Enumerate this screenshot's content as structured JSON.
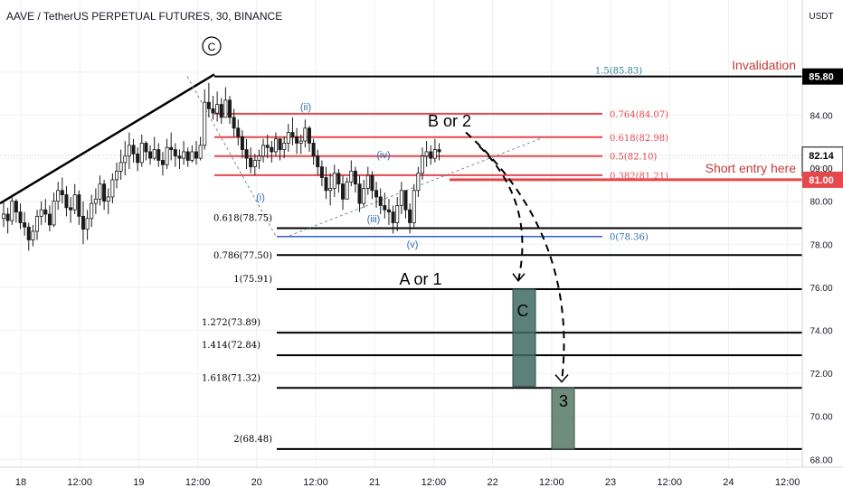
{
  "header": {
    "title": "AAVE / TetherUS PERPETUAL FUTURES, 30, BINANCE",
    "currency": "USDT"
  },
  "colors": {
    "background": "#ffffff",
    "grid": "#eef0f3",
    "axis_text": "#131722",
    "red_line": "#e5484d",
    "black_line": "#000000",
    "blue_line": "#2f5fd0",
    "candle": "#1b1b1b",
    "box_fill": "#3f6b66",
    "annotation_red": "#c43b3b",
    "annotation_blue": "#2e6fb3"
  },
  "chart_data": {
    "type": "candlestick",
    "symbol": "AAVE / TetherUS PERPETUAL FUTURES",
    "interval": "30",
    "exchange": "BINANCE",
    "ylim": [
      67.8,
      88.0
    ],
    "y_ticks": [
      "86.00",
      "84.00",
      "82.00",
      "80.00",
      "78.00",
      "76.00",
      "74.00",
      "72.00",
      "70.00",
      "68.00"
    ],
    "x_tick_labels": [
      "18",
      "12:00",
      "19",
      "12:00",
      "20",
      "12:00",
      "21",
      "12:00",
      "22",
      "12:00",
      "23",
      "12:00",
      "24",
      "12:00"
    ],
    "price_badges": [
      {
        "label": "85.80",
        "price": 85.8,
        "style": "black"
      },
      {
        "label": "82.14",
        "price": 82.14,
        "label2": "09:00",
        "style": "white"
      },
      {
        "label": "81.00",
        "price": 81.0,
        "style": "red"
      }
    ],
    "candles_hlc": [
      [
        80.0,
        78.8,
        79.4
      ],
      [
        79.7,
        78.5,
        79.1
      ],
      [
        80.3,
        78.9,
        80.0
      ],
      [
        80.1,
        79.0,
        79.5
      ],
      [
        79.9,
        78.7,
        79.0
      ],
      [
        79.5,
        78.4,
        78.8
      ],
      [
        79.0,
        77.7,
        78.2
      ],
      [
        78.9,
        77.9,
        78.6
      ],
      [
        79.6,
        78.2,
        79.3
      ],
      [
        80.0,
        78.9,
        79.6
      ],
      [
        80.1,
        79.0,
        79.4
      ],
      [
        79.8,
        78.6,
        78.9
      ],
      [
        80.4,
        78.8,
        80.0
      ],
      [
        80.9,
        79.6,
        80.5
      ],
      [
        81.1,
        79.9,
        80.3
      ],
      [
        80.7,
        79.3,
        79.7
      ],
      [
        80.2,
        79.0,
        79.6
      ],
      [
        80.8,
        79.4,
        80.3
      ],
      [
        80.5,
        78.9,
        79.3
      ],
      [
        80.0,
        78.0,
        78.7
      ],
      [
        79.6,
        78.2,
        79.2
      ],
      [
        80.3,
        78.8,
        79.9
      ],
      [
        80.6,
        79.4,
        80.1
      ],
      [
        81.2,
        79.8,
        80.8
      ],
      [
        81.0,
        79.6,
        80.0
      ],
      [
        80.6,
        79.4,
        80.2
      ],
      [
        81.3,
        79.9,
        81.0
      ],
      [
        81.8,
        80.6,
        81.4
      ],
      [
        82.4,
        81.0,
        81.8
      ],
      [
        82.8,
        81.2,
        82.1
      ],
      [
        83.2,
        81.5,
        82.6
      ],
      [
        82.9,
        81.8,
        82.2
      ],
      [
        82.5,
        81.4,
        81.8
      ],
      [
        83.1,
        81.6,
        82.7
      ],
      [
        82.8,
        81.9,
        82.3
      ],
      [
        82.6,
        81.7,
        82.0
      ],
      [
        83.0,
        81.9,
        82.4
      ],
      [
        82.7,
        81.6,
        81.9
      ],
      [
        82.3,
        81.2,
        81.7
      ],
      [
        82.9,
        81.5,
        82.5
      ],
      [
        83.2,
        81.9,
        82.4
      ],
      [
        82.7,
        81.6,
        82.1
      ],
      [
        82.4,
        81.5,
        82.0
      ],
      [
        82.8,
        81.7,
        82.3
      ],
      [
        82.5,
        81.6,
        81.9
      ],
      [
        82.6,
        81.8,
        82.3
      ],
      [
        82.8,
        81.7,
        82.0
      ],
      [
        83.0,
        81.9,
        82.6
      ],
      [
        85.2,
        82.4,
        84.6
      ],
      [
        85.5,
        83.9,
        84.3
      ],
      [
        84.9,
        83.8,
        84.1
      ],
      [
        85.1,
        83.7,
        84.5
      ],
      [
        84.8,
        83.6,
        83.9
      ],
      [
        85.3,
        83.9,
        84.7
      ],
      [
        84.9,
        83.6,
        83.9
      ],
      [
        84.3,
        83.0,
        83.4
      ],
      [
        83.8,
        82.6,
        83.0
      ],
      [
        83.3,
        82.0,
        82.4
      ],
      [
        82.9,
        81.5,
        82.0
      ],
      [
        82.5,
        81.3,
        81.6
      ],
      [
        82.2,
        81.2,
        81.9
      ],
      [
        82.4,
        81.5,
        82.1
      ],
      [
        82.9,
        81.8,
        82.6
      ],
      [
        83.1,
        82.0,
        82.5
      ],
      [
        82.8,
        81.8,
        82.3
      ],
      [
        83.2,
        82.1,
        82.9
      ],
      [
        82.9,
        81.9,
        82.4
      ],
      [
        83.0,
        82.0,
        82.7
      ],
      [
        83.6,
        82.3,
        83.2
      ],
      [
        83.9,
        82.6,
        83.0
      ],
      [
        83.4,
        82.2,
        82.7
      ],
      [
        83.1,
        82.2,
        82.8
      ],
      [
        83.8,
        82.5,
        83.4
      ],
      [
        83.5,
        82.3,
        82.7
      ],
      [
        82.9,
        81.7,
        82.1
      ],
      [
        82.4,
        81.2,
        81.6
      ],
      [
        81.9,
        80.7,
        81.1
      ],
      [
        81.6,
        80.1,
        80.5
      ],
      [
        81.3,
        79.8,
        80.6
      ],
      [
        81.7,
        80.2,
        81.3
      ],
      [
        81.5,
        80.4,
        80.8
      ],
      [
        81.2,
        79.6,
        80.1
      ],
      [
        81.1,
        80.2,
        80.9
      ],
      [
        81.9,
        80.7,
        81.4
      ],
      [
        81.6,
        80.4,
        80.8
      ],
      [
        81.2,
        79.5,
        79.9
      ],
      [
        81.0,
        79.7,
        80.6
      ],
      [
        81.6,
        80.3,
        81.2
      ],
      [
        81.4,
        80.1,
        80.5
      ],
      [
        80.9,
        79.7,
        80.2
      ],
      [
        80.6,
        79.4,
        79.8
      ],
      [
        80.4,
        79.2,
        79.6
      ],
      [
        80.1,
        78.9,
        79.5
      ],
      [
        79.8,
        78.5,
        79.0
      ],
      [
        80.2,
        78.6,
        79.8
      ],
      [
        80.9,
        79.4,
        80.5
      ],
      [
        80.5,
        79.2,
        79.6
      ],
      [
        79.9,
        78.5,
        79.0
      ],
      [
        80.8,
        78.8,
        80.5
      ],
      [
        81.6,
        80.2,
        81.3
      ],
      [
        82.5,
        81.0,
        82.1
      ],
      [
        82.8,
        81.6,
        82.3
      ],
      [
        82.6,
        81.7,
        82.0
      ],
      [
        82.9,
        81.8,
        82.4
      ],
      [
        82.7,
        81.9,
        82.3
      ]
    ],
    "horizontal_levels": [
      {
        "price": 85.8,
        "label": "1.5(85.83)",
        "color": "black"
      },
      {
        "price": 84.07,
        "label": "0.764(84.07)",
        "color": "red"
      },
      {
        "price": 82.98,
        "label": "0.618(82.98)",
        "color": "red"
      },
      {
        "price": 82.1,
        "label": "0.5(82.10)",
        "color": "red"
      },
      {
        "price": 81.21,
        "label": "0.382(81.21)",
        "color": "red"
      },
      {
        "price": 78.75,
        "label": "0.618(78.75)",
        "color": "black"
      },
      {
        "price": 78.36,
        "label": "0(78.36)",
        "color": "blue"
      },
      {
        "price": 77.5,
        "label": "0.786(77.50)",
        "color": "black"
      },
      {
        "price": 75.91,
        "label": "1(75.91)",
        "color": "black"
      },
      {
        "price": 73.89,
        "label": "1.272(73.89)",
        "color": "black"
      },
      {
        "price": 72.84,
        "label": "1.414(72.84)",
        "color": "black"
      },
      {
        "price": 71.32,
        "label": "1.618(71.32)",
        "color": "black"
      },
      {
        "price": 68.48,
        "label": "2(68.48)",
        "color": "black"
      }
    ],
    "annotations": {
      "invalidation": "Invalidation",
      "short_entry": "Short entry here",
      "b_or_2": "B or 2",
      "a_or_1": "A or 1",
      "wave_c_circle": "C",
      "box_c": "C",
      "box_3": "3",
      "wave_i": "(i)",
      "wave_ii": "(ii)",
      "wave_iii": "(iii)",
      "wave_iv": "(iv)",
      "wave_v": "(v)"
    }
  }
}
